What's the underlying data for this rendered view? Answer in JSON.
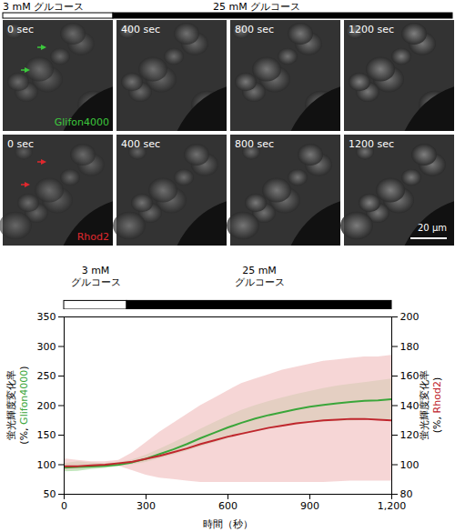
{
  "chart_data": {
    "type": "line",
    "x": [
      0,
      50,
      100,
      150,
      200,
      250,
      300,
      350,
      400,
      450,
      500,
      550,
      600,
      650,
      700,
      750,
      800,
      850,
      900,
      950,
      1000,
      1050,
      1100,
      1150,
      1200
    ],
    "xlim": [
      0,
      1200
    ],
    "xticks": [
      0,
      300,
      600,
      900,
      1200
    ],
    "ylim": [
      50,
      350
    ],
    "yticks": [
      50,
      100,
      150,
      200,
      250,
      300,
      350
    ],
    "y2lim": [
      80,
      200
    ],
    "y2ticks": [
      80,
      100,
      120,
      140,
      160,
      180,
      200
    ],
    "x_label": "時間（秒）",
    "y_label": "蛍光輝度変化率 (%, Glifon4000)",
    "y2_label": "蛍光輝度変化率 (%, Rhod2)",
    "grid": false,
    "conditions": [
      {
        "label": "3 mM グルコース",
        "start": 0,
        "end": 230,
        "color": "#ffffff"
      },
      {
        "label": "25 mM グルコース",
        "start": 230,
        "end": 1200,
        "color": "#000000"
      }
    ],
    "series": [
      {
        "name": "Glifon4000",
        "color": "#3aa63a",
        "band_color": "#a8dca0",
        "axis": "y",
        "values": [
          95,
          96,
          97,
          98,
          100,
          104,
          110,
          118,
          126,
          135,
          145,
          154,
          163,
          171,
          178,
          184,
          189,
          194,
          198,
          201,
          204,
          206,
          208,
          209,
          211
        ],
        "lower": [
          88,
          89,
          92,
          94,
          97,
          100,
          104,
          110,
          116,
          123,
          130,
          137,
          144,
          150,
          155,
          160,
          164,
          167,
          170,
          172,
          173,
          174,
          175,
          176,
          176
        ],
        "upper": [
          102,
          105,
          103,
          102,
          104,
          108,
          116,
          126,
          137,
          148,
          160,
          171,
          182,
          192,
          200,
          207,
          213,
          219,
          224,
          229,
          233,
          236,
          239,
          242,
          245
        ]
      },
      {
        "name": "Rhod2",
        "color": "#c0262d",
        "band_color": "#f2c4c4",
        "axis": "y2",
        "values": [
          99,
          99,
          99.5,
          100,
          101,
          102,
          104,
          106,
          108.5,
          111,
          114,
          116.5,
          119,
          121,
          123,
          125,
          126.5,
          128,
          129,
          130,
          130.5,
          131,
          131,
          130.5,
          130
        ],
        "lower": [
          96,
          97,
          98,
          99,
          99,
          96,
          93,
          91,
          90,
          89,
          88,
          88,
          88,
          88,
          88,
          88,
          88,
          88,
          88,
          88,
          88.5,
          89,
          89,
          89,
          89
        ],
        "upper": [
          104,
          103,
          102,
          102,
          103,
          108,
          115,
          122,
          128,
          134,
          140,
          145,
          150,
          155,
          158,
          161,
          164,
          166,
          168,
          170,
          171,
          172,
          173,
          173,
          174
        ]
      }
    ]
  },
  "images": {
    "times": [
      "0 sec",
      "400 sec",
      "800 sec",
      "1200 sec"
    ],
    "rows": [
      {
        "label": "Glifon4000",
        "color": "#3cc83c"
      },
      {
        "label": "Rhod2",
        "color": "#e0282e"
      }
    ],
    "scale_bar": "20 µm"
  }
}
